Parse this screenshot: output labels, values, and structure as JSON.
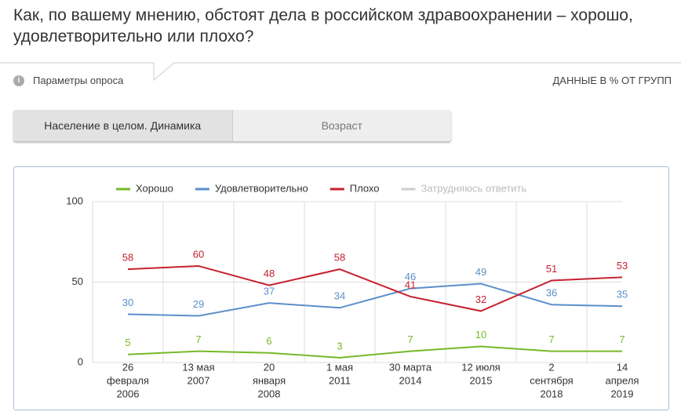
{
  "header": {
    "title": "Как, по вашему мнению, обстоят дела в российском здравоохранении – хорошо, удовлетворительно или плохо?",
    "params": "Параметры опроса",
    "units": "ДАННЫЕ В % ОТ ГРУПП"
  },
  "tabs": [
    "Население в целом. Динамика",
    "Возраст"
  ],
  "chart_data": {
    "type": "line",
    "categories": [
      [
        "26",
        "февраля",
        "2006"
      ],
      [
        "13 мая",
        "2007"
      ],
      [
        "20",
        "января",
        "2008"
      ],
      [
        "1 мая",
        "2011"
      ],
      [
        "30 марта",
        "2014"
      ],
      [
        "12 июля",
        "2015"
      ],
      [
        "2",
        "сентября",
        "2018"
      ],
      [
        "14",
        "апреля",
        "2019"
      ]
    ],
    "series": [
      {
        "name": "Хорошо",
        "color": "#77b82a",
        "values": [
          5,
          7,
          6,
          3,
          7,
          10,
          7,
          7
        ]
      },
      {
        "name": "Удовлетворительно",
        "color": "#5b8fc9",
        "values": [
          30,
          29,
          37,
          34,
          46,
          49,
          36,
          35
        ]
      },
      {
        "name": "Плохо",
        "color": "#c8202f",
        "values": [
          58,
          60,
          48,
          58,
          41,
          32,
          51,
          53
        ]
      },
      {
        "name": "Затрудняюсь ответить",
        "color": "#cccccc",
        "hidden": true
      }
    ],
    "ylim": [
      0,
      100
    ],
    "yticks": [
      0,
      50,
      100
    ],
    "grid": true,
    "legend": "top"
  }
}
